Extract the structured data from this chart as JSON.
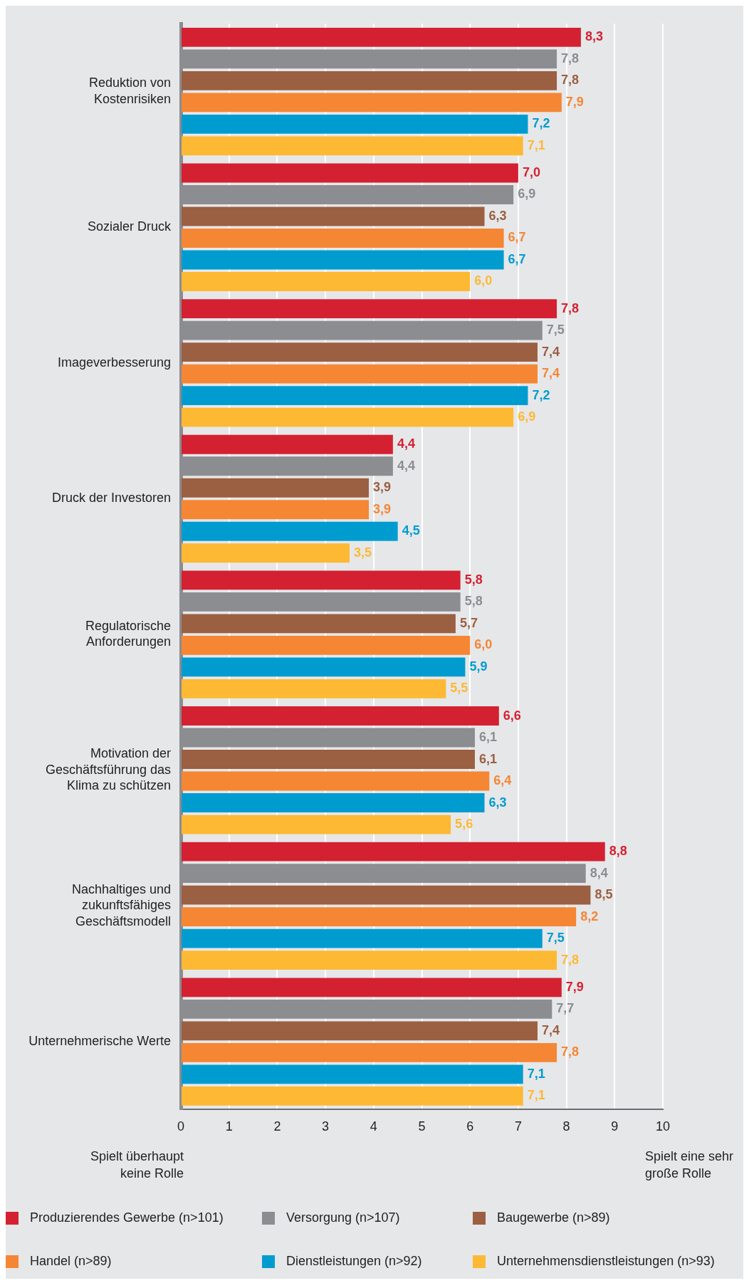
{
  "chart_data": {
    "type": "bar",
    "orientation": "horizontal",
    "categories": [
      "Reduktion von Kostenrisiken",
      "Sozialer Druck",
      "Imageverbesserung",
      "Druck der Investoren",
      "Regulatorische Anforderungen",
      "Motivation der Geschäftsführung das Klima zu schützen",
      "Nachhaltiges und zukunftsfähiges Geschäftsmodell",
      "Unternehmerische Werte"
    ],
    "series": [
      {
        "name": "Produzierendes Gewerbe (n>101)",
        "color": "#d42131",
        "values": [
          8.3,
          7.0,
          7.8,
          4.4,
          5.8,
          6.6,
          8.8,
          7.9
        ],
        "value_labels": [
          "8,3",
          "7,0",
          "7,8",
          "4,4",
          "5,8",
          "6,6",
          "8,8",
          "7,9"
        ]
      },
      {
        "name": "Versorgung (n>107)",
        "color": "#8c8d91",
        "values": [
          7.8,
          6.9,
          7.5,
          4.4,
          5.8,
          6.1,
          8.4,
          7.7
        ],
        "value_labels": [
          "7,8",
          "6,9",
          "7,5",
          "4,4",
          "5,8",
          "6,1",
          "8,4",
          "7,7"
        ]
      },
      {
        "name": "Baugewerbe (n>89)",
        "color": "#9b5f41",
        "values": [
          7.8,
          6.3,
          7.4,
          3.9,
          5.7,
          6.1,
          8.5,
          7.4
        ],
        "value_labels": [
          "7,8",
          "6,3",
          "7,4",
          "3,9",
          "5,7",
          "6,1",
          "8,5",
          "7,4"
        ]
      },
      {
        "name": "Handel (n>89)",
        "color": "#f58634",
        "values": [
          7.9,
          6.7,
          7.4,
          3.9,
          6.0,
          6.4,
          8.2,
          7.8
        ],
        "value_labels": [
          "7,9",
          "6,7",
          "7,4",
          "3,9",
          "6,0",
          "6,4",
          "8,2",
          "7,8"
        ]
      },
      {
        "name": "Dienstleistungen (n>92)",
        "color": "#009cd0",
        "values": [
          7.2,
          6.7,
          7.2,
          4.5,
          5.9,
          6.3,
          7.5,
          7.1
        ],
        "value_labels": [
          "7,2",
          "6,7",
          "7,2",
          "4,5",
          "5,9",
          "6,3",
          "7,5",
          "7,1"
        ]
      },
      {
        "name": "Unternehmensdienstleistungen (n>93)",
        "color": "#fdb933",
        "values": [
          7.1,
          6.0,
          6.9,
          3.5,
          5.5,
          5.6,
          7.8,
          7.1
        ],
        "value_labels": [
          "7,1",
          "6,0",
          "6,9",
          "3,5",
          "5,5",
          "5,6",
          "7,8",
          "7,1"
        ]
      }
    ],
    "xlim": [
      0,
      10
    ],
    "xticks": [
      0,
      1,
      2,
      3,
      4,
      5,
      6,
      7,
      8,
      9,
      10
    ],
    "grid": "x",
    "legend": "bottom",
    "annotations": [
      "Spielt überhaupt keine Rolle",
      "Spielt eine sehr große Rolle"
    ]
  }
}
